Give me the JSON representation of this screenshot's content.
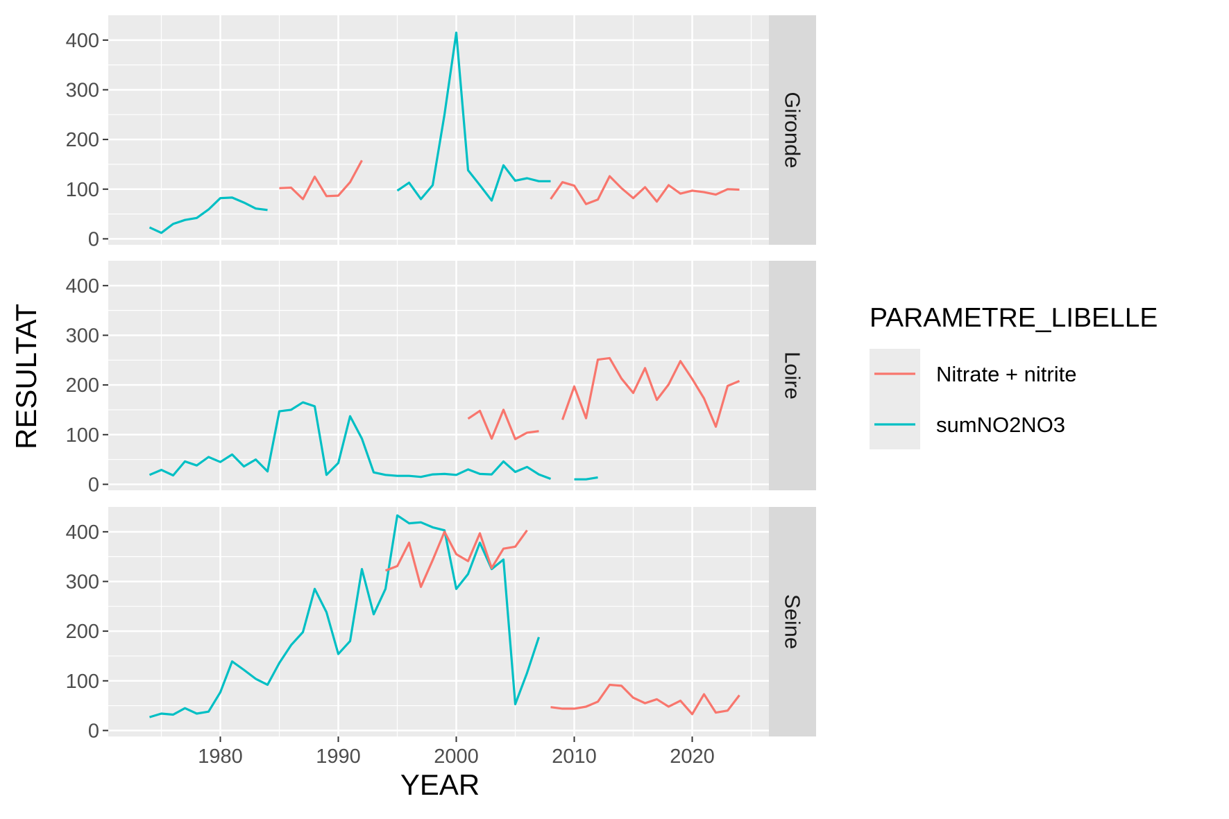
{
  "chart_data": {
    "type": "line",
    "facet_type": "facet_grid rows",
    "xlabel": "YEAR",
    "ylabel": "RESULTAT",
    "xlim": [
      1970.5,
      2026.5
    ],
    "ylim": [
      -12,
      450
    ],
    "x_ticks": [
      1980,
      1990,
      2000,
      2010,
      2020
    ],
    "y_ticks": [
      0,
      100,
      200,
      300,
      400
    ],
    "legend": {
      "title": "PARAMETRE_LIBELLE",
      "position": "right",
      "entries": [
        {
          "name": "Nitrate + nitrite",
          "color": "#F8766D"
        },
        {
          "name": "sumNO2NO3",
          "color": "#00BFC4"
        }
      ]
    },
    "panels": [
      {
        "name": "Gironde",
        "series": [
          {
            "name": "sumNO2NO3",
            "segments": [
              {
                "x": [
                  1974,
                  1975,
                  1976,
                  1977,
                  1978,
                  1979,
                  1980,
                  1981,
                  1982,
                  1983,
                  1984
                ],
                "y": [
                  23,
                  12,
                  30,
                  38,
                  42,
                  59,
                  82,
                  83,
                  73,
                  61,
                  58
                ]
              },
              {
                "x": [
                  1995,
                  1996,
                  1997,
                  1998,
                  1999,
                  2000,
                  2001,
                  2002,
                  2003,
                  2004,
                  2005,
                  2006,
                  2007,
                  2008
                ],
                "y": [
                  97,
                  113,
                  80,
                  108,
                  250,
                  415,
                  138,
                  108,
                  77,
                  148,
                  117,
                  122,
                  116,
                  116
                ]
              }
            ]
          },
          {
            "name": "Nitrate + nitrite",
            "segments": [
              {
                "x": [
                  1985,
                  1986,
                  1987,
                  1988,
                  1989,
                  1990,
                  1991,
                  1992
                ],
                "y": [
                  102,
                  103,
                  80,
                  125,
                  86,
                  87,
                  114,
                  158
                ]
              },
              {
                "x": [
                  2008,
                  2009,
                  2010,
                  2011,
                  2012,
                  2013,
                  2014,
                  2015,
                  2016,
                  2017,
                  2018,
                  2019,
                  2020,
                  2021,
                  2022,
                  2023,
                  2024
                ],
                "y": [
                  80,
                  114,
                  107,
                  70,
                  79,
                  126,
                  102,
                  82,
                  104,
                  75,
                  108,
                  91,
                  97,
                  94,
                  89,
                  100,
                  99
                ]
              }
            ]
          }
        ]
      },
      {
        "name": "Loire",
        "series": [
          {
            "name": "sumNO2NO3",
            "segments": [
              {
                "x": [
                  1974,
                  1975,
                  1976,
                  1977,
                  1978,
                  1979,
                  1980,
                  1981,
                  1982,
                  1983,
                  1984,
                  1985,
                  1986,
                  1987,
                  1988,
                  1989,
                  1990,
                  1991,
                  1992,
                  1993,
                  1994,
                  1995,
                  1996,
                  1997,
                  1998,
                  1999,
                  2000,
                  2001,
                  2002,
                  2003,
                  2004,
                  2005,
                  2006,
                  2007,
                  2008
                ],
                "y": [
                  19,
                  29,
                  18,
                  46,
                  38,
                  55,
                  45,
                  60,
                  36,
                  50,
                  26,
                  147,
                  150,
                  165,
                  157,
                  19,
                  43,
                  137,
                  92,
                  24,
                  19,
                  17,
                  17,
                  15,
                  20,
                  21,
                  19,
                  30,
                  21,
                  20,
                  46,
                  25,
                  35,
                  20,
                  11
                ]
              },
              {
                "x": [
                  2010,
                  2011,
                  2012
                ],
                "y": [
                  10,
                  10,
                  14
                ]
              }
            ]
          },
          {
            "name": "Nitrate + nitrite",
            "segments": [
              {
                "x": [
                  2001,
                  2002,
                  2003,
                  2004,
                  2005,
                  2006,
                  2007
                ],
                "y": [
                  132,
                  148,
                  92,
                  150,
                  91,
                  104,
                  107
                ]
              },
              {
                "x": [
                  2009,
                  2010,
                  2011,
                  2012,
                  2013,
                  2014,
                  2015,
                  2016,
                  2017,
                  2018,
                  2019,
                  2020,
                  2021,
                  2022,
                  2023,
                  2024
                ],
                "y": [
                  130,
                  197,
                  133,
                  251,
                  254,
                  213,
                  184,
                  234,
                  170,
                  201,
                  248,
                  212,
                  173,
                  116,
                  198,
                  208
                ]
              }
            ]
          }
        ]
      },
      {
        "name": "Seine",
        "series": [
          {
            "name": "sumNO2NO3",
            "segments": [
              {
                "x": [
                  1974,
                  1975,
                  1976,
                  1977,
                  1978,
                  1979,
                  1980,
                  1981,
                  1982,
                  1983,
                  1984,
                  1985,
                  1986,
                  1987,
                  1988,
                  1989,
                  1990,
                  1991,
                  1992,
                  1993,
                  1994,
                  1995,
                  1996,
                  1997,
                  1998,
                  1999,
                  2000,
                  2001,
                  2002,
                  2003,
                  2004,
                  2005,
                  2006,
                  2007
                ],
                "y": [
                  27,
                  34,
                  32,
                  45,
                  34,
                  38,
                  77,
                  139,
                  122,
                  104,
                  92,
                  136,
                  172,
                  198,
                  285,
                  238,
                  154,
                  180,
                  325,
                  234,
                  285,
                  433,
                  417,
                  419,
                  409,
                  403,
                  285,
                  315,
                  378,
                  325,
                  344,
                  53,
                  116,
                  188
                ]
              }
            ]
          },
          {
            "name": "Nitrate + nitrite",
            "segments": [
              {
                "x": [
                  1994,
                  1995,
                  1996,
                  1997,
                  1998,
                  1999,
                  2000,
                  2001,
                  2002,
                  2003,
                  2004,
                  2005,
                  2006
                ],
                "y": [
                  322,
                  331,
                  378,
                  289,
                  343,
                  400,
                  355,
                  341,
                  397,
                  327,
                  366,
                  370,
                  403
                ]
              },
              {
                "x": [
                  2008,
                  2009,
                  2010,
                  2011,
                  2012,
                  2013,
                  2014,
                  2015,
                  2016,
                  2017,
                  2018,
                  2019,
                  2020,
                  2021,
                  2022,
                  2023,
                  2024
                ],
                "y": [
                  47,
                  44,
                  44,
                  48,
                  58,
                  92,
                  90,
                  66,
                  55,
                  63,
                  48,
                  60,
                  33,
                  73,
                  36,
                  40,
                  71
                ]
              }
            ]
          }
        ]
      }
    ]
  }
}
